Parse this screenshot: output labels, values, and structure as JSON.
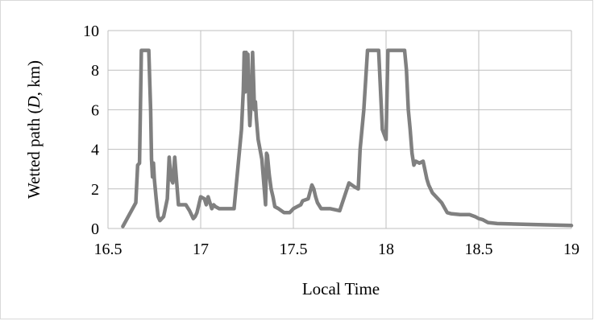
{
  "chart_data": {
    "type": "line",
    "title": "",
    "xlabel": "Local Time",
    "ylabel_parts": [
      "Wetted path (",
      "D",
      ", km)"
    ],
    "xlim": [
      16.5,
      19
    ],
    "ylim": [
      0,
      10
    ],
    "xticks": [
      "16.5",
      "17",
      "17.5",
      "18",
      "18.5",
      "19"
    ],
    "yticks": [
      "0",
      "2",
      "4",
      "6",
      "8",
      "10"
    ],
    "grid": true,
    "legend": "none",
    "line_color": "#808080",
    "series": [
      {
        "x": [
          16.58,
          16.65,
          16.66,
          16.67,
          16.68,
          16.69,
          16.7,
          16.72,
          16.73,
          16.735,
          16.74,
          16.745,
          16.75,
          16.76,
          16.77,
          16.78,
          16.8,
          16.82,
          16.83,
          16.84,
          16.85,
          16.86,
          16.87,
          16.88,
          16.89,
          16.9,
          16.92,
          16.94,
          16.95,
          16.96,
          16.97,
          16.98,
          17.0,
          17.02,
          17.03,
          17.04,
          17.05,
          17.06,
          17.07,
          17.08,
          17.1,
          17.12,
          17.15,
          17.18,
          17.2,
          17.22,
          17.23,
          17.235,
          17.24,
          17.245,
          17.25,
          17.255,
          17.26,
          17.265,
          17.27,
          17.275,
          17.28,
          17.285,
          17.29,
          17.295,
          17.3,
          17.31,
          17.33,
          17.35,
          17.355,
          17.36,
          17.37,
          17.38,
          17.39,
          17.4,
          17.42,
          17.45,
          17.48,
          17.5,
          17.52,
          17.54,
          17.55,
          17.58,
          17.6,
          17.61,
          17.62,
          17.63,
          17.65,
          17.7,
          17.75,
          17.8,
          17.83,
          17.85,
          17.86,
          17.88,
          17.9,
          17.95,
          17.96,
          17.97,
          17.98,
          18.0,
          18.01,
          18.03,
          18.05,
          18.08,
          18.1,
          18.11,
          18.12,
          18.13,
          18.14,
          18.15,
          18.16,
          18.18,
          18.2,
          18.22,
          18.23,
          18.25,
          18.3,
          18.33,
          18.35,
          18.4,
          18.45,
          18.48,
          18.5,
          18.52,
          18.55,
          18.6,
          18.8,
          19.0
        ],
        "y": [
          0.1,
          1.3,
          3.2,
          3.3,
          9.0,
          9.0,
          9.0,
          9.0,
          6.0,
          3.5,
          2.6,
          3.3,
          2.5,
          1.5,
          0.6,
          0.4,
          0.6,
          1.5,
          3.6,
          2.5,
          2.3,
          3.6,
          2.4,
          1.2,
          1.2,
          1.2,
          1.2,
          0.9,
          0.7,
          0.5,
          0.6,
          0.8,
          1.6,
          1.5,
          1.2,
          1.6,
          1.3,
          1.0,
          1.2,
          1.1,
          1.0,
          1.0,
          1.0,
          1.0,
          3.0,
          5.0,
          7.0,
          8.9,
          6.9,
          8.9,
          7.8,
          8.8,
          6.5,
          5.2,
          6.0,
          7.0,
          8.9,
          7.5,
          6.0,
          6.4,
          5.6,
          4.5,
          3.5,
          1.2,
          3.8,
          3.7,
          2.7,
          2.0,
          1.6,
          1.1,
          1.0,
          0.8,
          0.8,
          1.0,
          1.1,
          1.2,
          1.4,
          1.5,
          2.2,
          2.0,
          1.6,
          1.3,
          1.0,
          1.0,
          0.9,
          2.3,
          2.1,
          2.0,
          4.0,
          6.0,
          9.0,
          9.0,
          9.0,
          7.0,
          5.0,
          4.5,
          9.0,
          9.0,
          9.0,
          9.0,
          9.0,
          8.0,
          6.0,
          5.0,
          3.8,
          3.2,
          3.4,
          3.3,
          3.4,
          2.5,
          2.2,
          1.8,
          1.3,
          0.8,
          0.75,
          0.7,
          0.7,
          0.6,
          0.5,
          0.45,
          0.3,
          0.25,
          0.2,
          0.15
        ]
      }
    ]
  }
}
